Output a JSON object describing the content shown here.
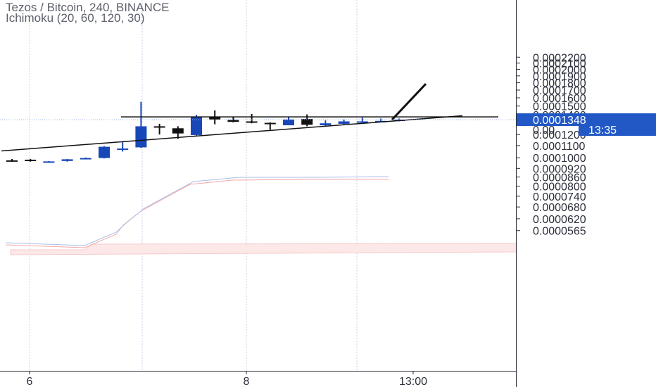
{
  "legend": {
    "title": "Tezos / Bitcoin, 240, BINANCE",
    "indicator": "Ichimoku (20, 60, 120, 30)"
  },
  "colors": {
    "up": "#1848b8",
    "down": "#111111",
    "grid": "#c8d2ea",
    "cloud": "#fde8e8",
    "price_tag": "#2158c6",
    "axis_text": "#2a2e39",
    "trendline": "#111111"
  },
  "chart_data": {
    "type": "candlestick",
    "title": "Tezos / Bitcoin, 240, BINANCE",
    "indicator": "Ichimoku (20, 60, 120, 30)",
    "y_scale": "log",
    "ylim": [
      5.3e-05,
      0.000235
    ],
    "y_ticks": [
      "0.0002200",
      "0.0002100",
      "0.0002000",
      "0.0001900",
      "0.0001800",
      "0.0001700",
      "0.0001600",
      "0.0001500",
      "0.0001400",
      "0.0001200",
      "0.0001100",
      "0.0001000",
      "0.0000920",
      "0.0000860",
      "0.0000800",
      "0.0000740",
      "0.0000680",
      "0.0000620",
      "0.0000565"
    ],
    "x_ticks": [
      "6",
      "8",
      "13:00"
    ],
    "last_price": "0.0001348",
    "countdown": "13:35",
    "countdown_price_prefix": "0.00",
    "candles": [
      {
        "o": 9.8e-05,
        "h": 9.9e-05,
        "l": 9.7e-05,
        "c": 9.75e-05
      },
      {
        "o": 9.85e-05,
        "h": 9.9e-05,
        "l": 9.7e-05,
        "c": 9.75e-05
      },
      {
        "o": 9.7e-05,
        "h": 9.75e-05,
        "l": 9.65e-05,
        "c": 9.72e-05
      },
      {
        "o": 9.75e-05,
        "h": 9.9e-05,
        "l": 9.7e-05,
        "c": 9.88e-05
      },
      {
        "o": 9.95e-05,
        "h": 0.0001002,
        "l": 9.92e-05,
        "c": 9.98e-05
      },
      {
        "o": 9.98e-05,
        "h": 0.0001095,
        "l": 9.95e-05,
        "c": 0.000109
      },
      {
        "o": 0.000107,
        "h": 0.000113,
        "l": 0.000105,
        "c": 0.0001075
      },
      {
        "o": 0.0001085,
        "h": 0.000155,
        "l": 0.000108,
        "c": 0.000128
      },
      {
        "o": 0.000128,
        "h": 0.0001305,
        "l": 0.00012,
        "c": 0.000127
      },
      {
        "o": 0.000126,
        "h": 0.000128,
        "l": 0.000116,
        "c": 0.000121
      },
      {
        "o": 0.0001195,
        "h": 0.00014,
        "l": 0.000119,
        "c": 0.0001375
      },
      {
        "o": 0.000138,
        "h": 0.000145,
        "l": 0.00013,
        "c": 0.000135
      },
      {
        "o": 0.0001345,
        "h": 0.000138,
        "l": 0.000132,
        "c": 0.0001325
      },
      {
        "o": 0.000133,
        "h": 0.000141,
        "l": 0.000131,
        "c": 0.0001325
      },
      {
        "o": 0.0001315,
        "h": 0.000132,
        "l": 0.0001245,
        "c": 0.000131
      },
      {
        "o": 0.000129,
        "h": 0.000138,
        "l": 0.000129,
        "c": 0.000135
      },
      {
        "o": 0.0001355,
        "h": 0.0001405,
        "l": 0.000128,
        "c": 0.0001295
      },
      {
        "o": 0.000129,
        "h": 0.000134,
        "l": 0.0001285,
        "c": 0.000131
      },
      {
        "o": 0.0001305,
        "h": 0.000135,
        "l": 0.00013,
        "c": 0.000133
      },
      {
        "o": 0.0001325,
        "h": 0.000137,
        "l": 0.000132,
        "c": 0.000133
      },
      {
        "o": 0.000133,
        "h": 0.000136,
        "l": 0.0001325,
        "c": 0.0001335
      },
      {
        "o": 0.0001335,
        "h": 0.000136,
        "l": 0.000133,
        "c": 0.0001348
      }
    ],
    "drawings": {
      "horizontal_resistance": 0.0001378,
      "rising_support": [
        0.0001055,
        0.000139
      ],
      "breakout_arrow": [
        0.0001348,
        0.0001785
      ]
    }
  }
}
